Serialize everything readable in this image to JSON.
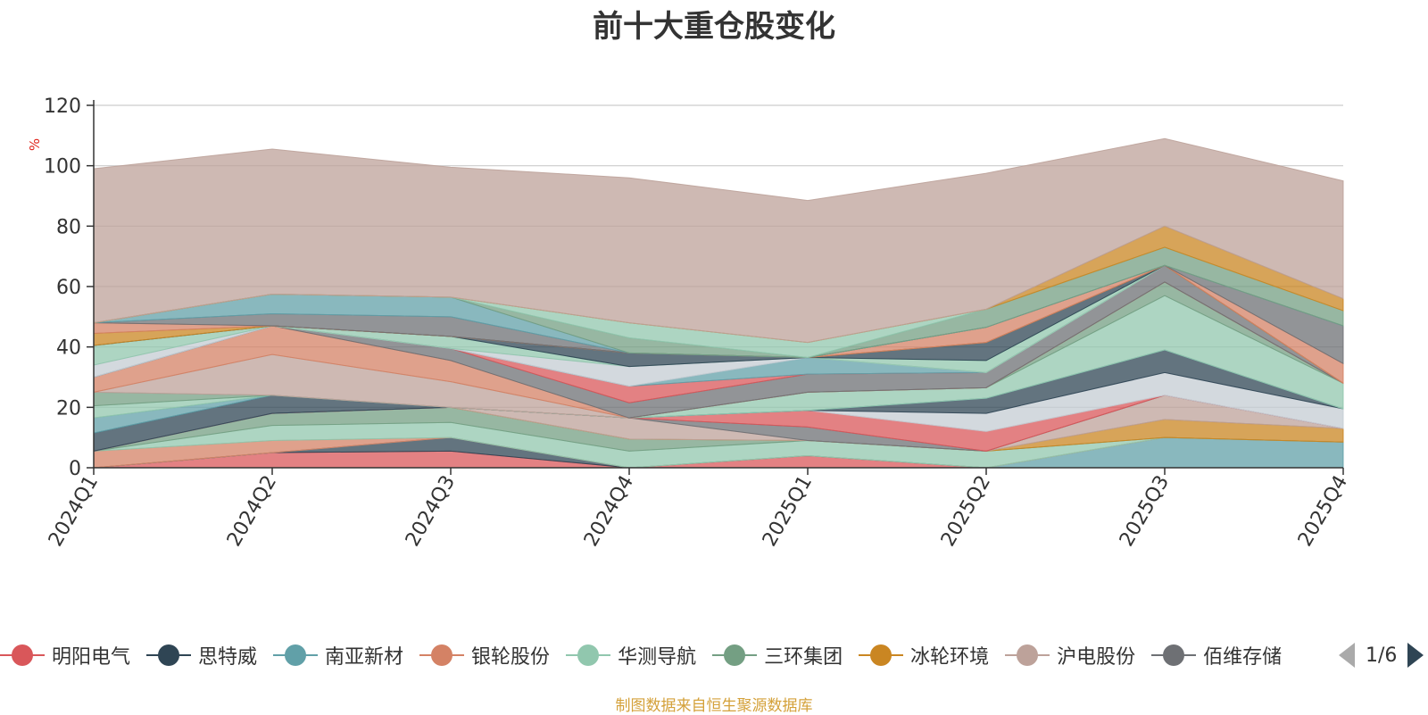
{
  "title": "前十大重仓股变化",
  "footer_note": "制图数据来自恒生聚源数据库",
  "legend_pager": "1/6",
  "chart_data": {
    "type": "area",
    "stacked": true,
    "title": "前十大重仓股变化",
    "ylabel": "%",
    "ylim": [
      0,
      120
    ],
    "yticks": [
      0,
      20,
      40,
      60,
      80,
      100,
      120
    ],
    "grid": true,
    "legend_position": "bottom",
    "categories": [
      "2024Q1",
      "2024Q2",
      "2024Q3",
      "2024Q4",
      "2025Q1",
      "2025Q2",
      "2025Q3",
      "2025Q4"
    ],
    "series": [
      {
        "name": "明阳电气",
        "color": "#d9575a",
        "values": [
          0,
          5,
          5.5,
          0,
          4,
          0,
          0,
          0
        ]
      },
      {
        "name": "思特威",
        "color": "#2f4554",
        "values": [
          0,
          0,
          4.5,
          0,
          0,
          0,
          0,
          0
        ]
      },
      {
        "name": "南亚新材",
        "color": "#61a0a8",
        "values": [
          0,
          0,
          0,
          0,
          0,
          0,
          10,
          8.5
        ]
      },
      {
        "name": "银轮股份",
        "color": "#d48265",
        "values": [
          5.5,
          4,
          0,
          0,
          0,
          0,
          0,
          0
        ]
      },
      {
        "name": "华测导航",
        "color": "#91c7ae",
        "values": [
          0,
          5,
          5,
          5.5,
          5,
          5.5,
          0,
          0
        ]
      },
      {
        "name": "三环集团",
        "color": "#749f83",
        "values": [
          0,
          4,
          5,
          4,
          0,
          0,
          0,
          0
        ]
      },
      {
        "name": "冰轮环境",
        "color": "#ca8622",
        "values": [
          0,
          0,
          0,
          0,
          0,
          0,
          6,
          4.5
        ]
      },
      {
        "name": "沪电股份",
        "color": "#bda29a",
        "values": [
          0,
          0,
          0,
          7,
          0,
          0,
          8,
          0
        ]
      },
      {
        "name": "佰维存储",
        "color": "#6e7074",
        "values": [
          0,
          0,
          0,
          0,
          4.5,
          0,
          0,
          0
        ]
      },
      {
        "name": "",
        "color": "#d9575a",
        "values": [
          0,
          0,
          0,
          0,
          5.5,
          6.5,
          0,
          0
        ]
      },
      {
        "name": "",
        "color": "#c4ccd3",
        "values": [
          0,
          0,
          0,
          0,
          0,
          6,
          7.5,
          6.5
        ]
      },
      {
        "name": "",
        "color": "#2f4554",
        "values": [
          6,
          6,
          0,
          0,
          0,
          5,
          7.5,
          0
        ]
      },
      {
        "name": "",
        "color": "#61a0a8",
        "values": [
          5,
          0,
          0,
          0,
          0,
          0,
          0,
          0
        ]
      },
      {
        "name": "",
        "color": "#91c7ae",
        "values": [
          4,
          0,
          0,
          0,
          6,
          3.5,
          18,
          8.5
        ]
      },
      {
        "name": "",
        "color": "#749f83",
        "values": [
          4.5,
          0,
          0,
          0,
          0,
          0,
          4.5,
          0
        ]
      },
      {
        "name": "",
        "color": "#bda29a",
        "values": [
          0,
          13.5,
          8.5,
          0,
          0,
          0,
          0,
          0
        ]
      },
      {
        "name": "",
        "color": "#d48265",
        "values": [
          5,
          9.5,
          7,
          0,
          0,
          0,
          0,
          0
        ]
      },
      {
        "name": "",
        "color": "#6e7074",
        "values": [
          0,
          0,
          4,
          5,
          6,
          5,
          5.5,
          0
        ]
      },
      {
        "name": "",
        "color": "#d9575a",
        "values": [
          0,
          0,
          0,
          5.5,
          0,
          0,
          0,
          0
        ]
      },
      {
        "name": "",
        "color": "#61a0a8",
        "values": [
          0,
          0,
          0,
          0,
          5.5,
          0,
          0,
          0
        ]
      },
      {
        "name": "",
        "color": "#c4ccd3",
        "values": [
          4,
          0,
          0,
          6.5,
          0,
          0,
          0,
          0
        ]
      },
      {
        "name": "",
        "color": "#91c7ae",
        "values": [
          6.5,
          0,
          4,
          0,
          0,
          4,
          0,
          0
        ]
      },
      {
        "name": "",
        "color": "#2f4554",
        "values": [
          0,
          0,
          0,
          4.5,
          0,
          6,
          0,
          0
        ]
      },
      {
        "name": "",
        "color": "#ca8622",
        "values": [
          4,
          0,
          0,
          0,
          0,
          0,
          0,
          0
        ]
      },
      {
        "name": "",
        "color": "#d48265",
        "values": [
          3.5,
          0,
          0,
          0,
          0,
          5,
          0,
          6.5
        ]
      },
      {
        "name": "",
        "color": "#6e7074",
        "values": [
          0,
          4,
          6.5,
          0,
          0,
          0,
          0,
          12.5
        ]
      },
      {
        "name": "",
        "color": "#61a0a8",
        "values": [
          0,
          6.5,
          6.5,
          0,
          0,
          0,
          0,
          0
        ]
      },
      {
        "name": "",
        "color": "#749f83",
        "values": [
          0,
          0,
          0,
          5,
          0,
          6,
          6,
          5
        ]
      },
      {
        "name": "",
        "color": "#91c7ae",
        "values": [
          0,
          0,
          0,
          5,
          5,
          0,
          0,
          0
        ]
      },
      {
        "name": "",
        "color": "#ca8622",
        "values": [
          0,
          0,
          0,
          0,
          0,
          0,
          7,
          4
        ]
      },
      {
        "name": "",
        "color": "#bda29a",
        "values": [
          51,
          48,
          43,
          48,
          47,
          45,
          29,
          39
        ]
      }
    ]
  }
}
